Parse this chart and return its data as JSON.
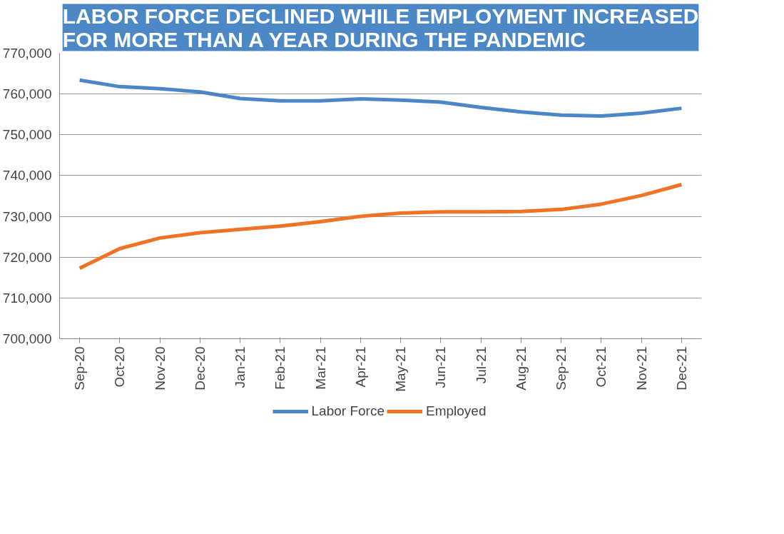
{
  "chart_data": {
    "type": "line",
    "title": "LABOR FORCE DECLINED WHILE EMPLOYMENT INCREASED\nFOR MORE THAN A YEAR DURING THE PANDEMIC",
    "categories": [
      "Sep-20",
      "Oct-20",
      "Nov-20",
      "Dec-20",
      "Jan-21",
      "Feb-21",
      "Mar-21",
      "Apr-21",
      "May-21",
      "Jun-21",
      "Jul-21",
      "Aug-21",
      "Sep-21",
      "Oct-21",
      "Nov-21",
      "Dec-21"
    ],
    "series": [
      {
        "name": "Labor Force",
        "color": "#4a86c8",
        "values": [
          763400,
          761800,
          761300,
          760500,
          758900,
          758300,
          758300,
          758800,
          758500,
          758000,
          756700,
          755600,
          754800,
          754600,
          755300,
          756500
        ]
      },
      {
        "name": "Employed",
        "color": "#f07223",
        "values": [
          717300,
          722100,
          724700,
          726000,
          726800,
          727600,
          728700,
          730000,
          730800,
          731100,
          731100,
          731200,
          731700,
          733000,
          735100,
          737800
        ]
      }
    ],
    "ylim": [
      700000,
      770000
    ],
    "yticks": [
      {
        "value": 700000,
        "label": "700,000"
      },
      {
        "value": 710000,
        "label": "710,000"
      },
      {
        "value": 720000,
        "label": "720,000"
      },
      {
        "value": 730000,
        "label": "730,000"
      },
      {
        "value": 740000,
        "label": "740,000"
      },
      {
        "value": 750000,
        "label": "750,000"
      },
      {
        "value": 760000,
        "label": "760,000"
      },
      {
        "value": 770000,
        "label": "770,000"
      }
    ],
    "grid": "y",
    "legend": "bottom",
    "marker": "none",
    "line_style": "solid"
  }
}
